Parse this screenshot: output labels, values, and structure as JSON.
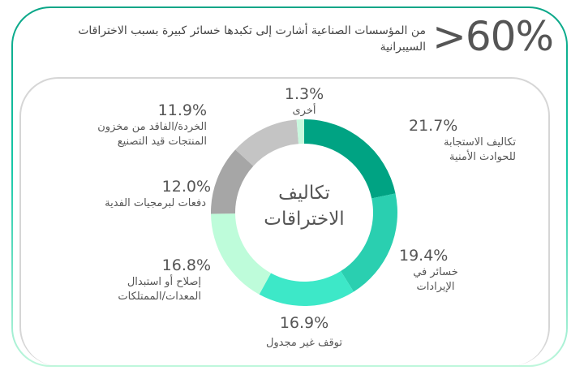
{
  "header": {
    "big_stat": ">60%",
    "headline": "من المؤسسات الصناعية أشارت إلى تكبدها خسائر كبيرة بسبب الاختراقات السيبرانية"
  },
  "chart_data": {
    "type": "pie",
    "subtype": "donut",
    "title": "تكاليف الاختراقات",
    "center_label_line1": "تكاليف",
    "center_label_line2": "الاختراقات",
    "categories": [
      "تكاليف الاستجابة للحوادث الأمنية",
      "خسائر في الإيرادات",
      "توقف غير مجدول",
      "إصلاح أو استبدال المعدات/الممتلكات",
      "دفعات لبرمجيات الفدية",
      "الخردة/الفاقد من مخزون المنتجات قيد التصنيع",
      "أخرى"
    ],
    "values": [
      21.7,
      19.4,
      16.9,
      16.8,
      12.0,
      11.9,
      1.3
    ],
    "colors": [
      "#00a383",
      "#2acfb0",
      "#3de8c8",
      "#befcda",
      "#a6a6a6",
      "#c4c4c4",
      "#c8f8de"
    ],
    "legend_position": "labels around donut"
  },
  "labels": [
    {
      "pct": "21.7%",
      "line1": "تكاليف الاستجابة",
      "line2": "للحوادث الأمنية"
    },
    {
      "pct": "19.4%",
      "line1": "خسائر في",
      "line2": "الإيرادات"
    },
    {
      "pct": "16.9%",
      "line1": "توقف غير مجدول",
      "line2": ""
    },
    {
      "pct": "16.8%",
      "line1": "إصلاح أو استبدال",
      "line2": "المعدات/الممتلكات"
    },
    {
      "pct": "12.0%",
      "line1": "دفعات لبرمجيات الفدية",
      "line2": ""
    },
    {
      "pct": "11.9%",
      "line1": "الخردة/الفاقد من مخزون",
      "line2": "المنتجات قيد التصنيع"
    },
    {
      "pct": "1.3%",
      "line1": "أخرى",
      "line2": ""
    }
  ]
}
